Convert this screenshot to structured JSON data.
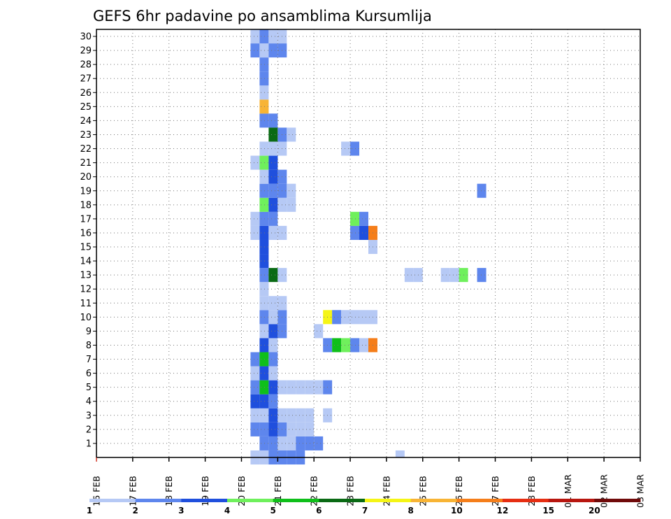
{
  "chart_data": {
    "type": "heatmap",
    "title": "GEFS 6hr padavine po ansamblima Kursumlija",
    "y_ticks": [
      "1",
      "2",
      "3",
      "4",
      "5",
      "6",
      "7",
      "8",
      "9",
      "10",
      "11",
      "12",
      "13",
      "14",
      "15",
      "16",
      "17",
      "18",
      "19",
      "20",
      "21",
      "22",
      "23",
      "24",
      "25",
      "26",
      "27",
      "28",
      "29",
      "30"
    ],
    "y_range": [
      0,
      30
    ],
    "x_ticks": [
      "16 FEB",
      "17 FEB",
      "18 FEB",
      "19 FEB",
      "20 FEB",
      "21 FEB",
      "22 FEB",
      "23 FEB",
      "24 FEB",
      "25 FEB",
      "26 FEB",
      "27 FEB",
      "28 FEB",
      "01 MAR",
      "02 MAR",
      "03 MAR"
    ],
    "x_range_days": [
      0,
      15
    ],
    "step_hours": 6,
    "grid": true,
    "colorbar": {
      "colors": [
        "#b6c9f5",
        "#5e86ed",
        "#1f4fdd",
        "#6ff05c",
        "#0fbf1a",
        "#0a6a14",
        "#f5f516",
        "#f8b435",
        "#f57e1a",
        "#e62e12",
        "#b8160f",
        "#700a0a"
      ],
      "labels": [
        "1",
        "2",
        "3",
        "4",
        "5",
        "6",
        "7",
        "8",
        "10",
        "12",
        "15",
        "20"
      ]
    },
    "cells": [
      [
        0,
        4.25,
        1
      ],
      [
        0,
        4.5,
        1
      ],
      [
        0,
        4.75,
        2
      ],
      [
        0,
        5.0,
        2
      ],
      [
        0,
        5.25,
        2
      ],
      [
        0,
        5.5,
        2
      ],
      [
        1,
        4.5,
        2
      ],
      [
        1,
        4.75,
        2
      ],
      [
        1,
        5.0,
        1
      ],
      [
        1,
        5.25,
        1
      ],
      [
        1,
        5.5,
        2
      ],
      [
        1,
        5.75,
        2
      ],
      [
        1,
        6.0,
        2
      ],
      [
        2,
        4.25,
        2
      ],
      [
        2,
        4.5,
        2
      ],
      [
        2,
        4.75,
        3
      ],
      [
        2,
        5.0,
        2
      ],
      [
        2,
        5.25,
        1
      ],
      [
        2,
        5.5,
        1
      ],
      [
        2,
        5.75,
        1
      ],
      [
        3,
        4.25,
        1
      ],
      [
        3,
        4.5,
        1
      ],
      [
        3,
        4.75,
        3
      ],
      [
        3,
        5.0,
        1
      ],
      [
        3,
        5.25,
        1
      ],
      [
        3,
        5.5,
        1
      ],
      [
        3,
        5.75,
        1
      ],
      [
        3,
        6.25,
        1
      ],
      [
        4,
        4.25,
        3
      ],
      [
        4,
        4.5,
        3
      ],
      [
        4,
        4.75,
        2
      ],
      [
        5,
        4.25,
        2
      ],
      [
        5,
        4.5,
        5
      ],
      [
        5,
        4.75,
        3
      ],
      [
        5,
        5.0,
        1
      ],
      [
        5,
        5.25,
        1
      ],
      [
        5,
        5.5,
        1
      ],
      [
        5,
        5.75,
        1
      ],
      [
        5,
        6.0,
        1
      ],
      [
        5,
        6.25,
        2
      ],
      [
        6,
        4.25,
        1
      ],
      [
        6,
        4.5,
        3
      ],
      [
        6,
        4.75,
        1
      ],
      [
        7,
        4.25,
        2
      ],
      [
        7,
        4.5,
        5
      ],
      [
        7,
        4.75,
        2
      ],
      [
        8,
        4.5,
        3
      ],
      [
        8,
        4.75,
        1
      ],
      [
        8,
        6.25,
        2
      ],
      [
        8,
        6.5,
        5
      ],
      [
        8,
        6.75,
        4
      ],
      [
        8,
        7.0,
        2
      ],
      [
        8,
        7.25,
        1
      ],
      [
        8,
        7.5,
        9
      ],
      [
        9,
        4.5,
        1
      ],
      [
        9,
        4.75,
        3
      ],
      [
        9,
        5.0,
        2
      ],
      [
        9,
        6.0,
        1
      ],
      [
        10,
        4.5,
        2
      ],
      [
        10,
        4.75,
        1
      ],
      [
        10,
        5.0,
        2
      ],
      [
        10,
        6.25,
        7
      ],
      [
        10,
        6.5,
        2
      ],
      [
        10,
        6.75,
        1
      ],
      [
        10,
        7.0,
        1
      ],
      [
        10,
        7.25,
        1
      ],
      [
        10,
        7.5,
        1
      ],
      [
        11,
        4.5,
        1
      ],
      [
        11,
        4.75,
        1
      ],
      [
        11,
        5.0,
        1
      ],
      [
        12,
        4.5,
        1
      ],
      [
        13,
        4.5,
        2
      ],
      [
        13,
        4.75,
        6
      ],
      [
        13,
        5.0,
        1
      ],
      [
        13,
        8.5,
        1
      ],
      [
        13,
        8.75,
        1
      ],
      [
        13,
        9.5,
        1
      ],
      [
        13,
        9.75,
        1
      ],
      [
        13,
        10.0,
        4
      ],
      [
        13,
        10.5,
        2
      ],
      [
        14,
        4.5,
        3
      ],
      [
        15,
        4.5,
        3
      ],
      [
        15,
        7.5,
        1
      ],
      [
        16,
        4.25,
        1
      ],
      [
        16,
        4.5,
        3
      ],
      [
        16,
        4.75,
        1
      ],
      [
        16,
        5.0,
        1
      ],
      [
        16,
        7.0,
        2
      ],
      [
        16,
        7.25,
        3
      ],
      [
        16,
        7.5,
        9
      ],
      [
        17,
        4.25,
        1
      ],
      [
        17,
        4.5,
        2
      ],
      [
        17,
        4.75,
        2
      ],
      [
        17,
        7.0,
        4
      ],
      [
        17,
        7.25,
        2
      ],
      [
        18,
        4.5,
        4
      ],
      [
        18,
        4.75,
        3
      ],
      [
        18,
        5.0,
        1
      ],
      [
        18,
        5.25,
        1
      ],
      [
        19,
        4.5,
        2
      ],
      [
        19,
        4.75,
        2
      ],
      [
        19,
        5.0,
        2
      ],
      [
        19,
        5.25,
        1
      ],
      [
        19,
        10.5,
        2
      ],
      [
        20,
        4.5,
        1
      ],
      [
        20,
        4.75,
        3
      ],
      [
        20,
        5.0,
        2
      ],
      [
        21,
        4.25,
        1
      ],
      [
        21,
        4.5,
        4
      ],
      [
        21,
        4.75,
        3
      ],
      [
        22,
        4.5,
        1
      ],
      [
        22,
        4.75,
        1
      ],
      [
        22,
        5.0,
        1
      ],
      [
        22,
        6.75,
        1
      ],
      [
        22,
        7.0,
        2
      ],
      [
        23,
        4.75,
        6
      ],
      [
        23,
        5.0,
        2
      ],
      [
        23,
        5.25,
        1
      ],
      [
        24,
        4.5,
        2
      ],
      [
        24,
        4.75,
        2
      ],
      [
        25,
        4.5,
        8
      ],
      [
        26,
        4.5,
        1
      ],
      [
        27,
        4.5,
        2
      ],
      [
        28,
        4.5,
        2
      ],
      [
        29,
        4.25,
        2
      ],
      [
        29,
        4.5,
        1
      ],
      [
        29,
        4.75,
        2
      ],
      [
        29,
        5.0,
        2
      ],
      [
        30,
        4.25,
        1
      ],
      [
        30,
        4.5,
        2
      ],
      [
        30,
        4.75,
        1
      ],
      [
        30,
        5.0,
        1
      ]
    ],
    "cells_bottom_row": [
      [
        4.5,
        1
      ],
      [
        4.75,
        2
      ],
      [
        8.25,
        1
      ]
    ]
  }
}
